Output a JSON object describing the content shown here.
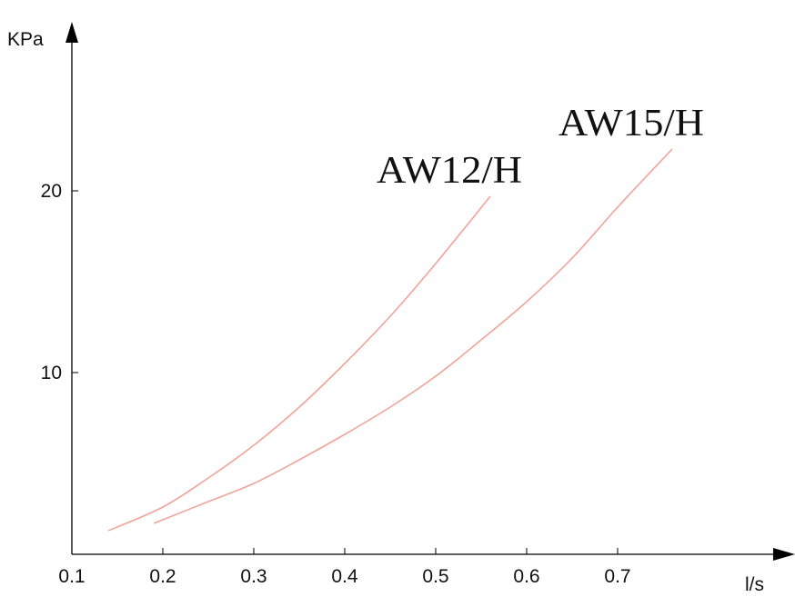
{
  "chart_data": {
    "type": "line",
    "title": "",
    "xlabel": "l/s",
    "ylabel": "KPa",
    "xlim": [
      0.1,
      0.8
    ],
    "ylim": [
      0,
      27
    ],
    "x_ticks": [
      0.1,
      0.2,
      0.3,
      0.4,
      0.5,
      0.6,
      0.7
    ],
    "x_tick_labels": [
      "0.1",
      "0.2",
      "0.3",
      "0.4",
      "0.5",
      "0.6",
      "0.7"
    ],
    "y_ticks": [
      10,
      20
    ],
    "y_tick_labels": [
      "10",
      "20"
    ],
    "grid": false,
    "legend": "none",
    "line_color": "#f0a49a",
    "axis_color": "#000000",
    "series": [
      {
        "name": "AW12/H",
        "x": [
          0.14,
          0.2,
          0.25,
          0.3,
          0.35,
          0.4,
          0.45,
          0.5,
          0.56
        ],
        "y": [
          1.3,
          2.6,
          4.2,
          6.0,
          8.1,
          10.5,
          13.1,
          16.0,
          19.7
        ]
      },
      {
        "name": "AW15/H",
        "x": [
          0.19,
          0.25,
          0.3,
          0.35,
          0.4,
          0.45,
          0.5,
          0.55,
          0.6,
          0.65,
          0.7,
          0.76
        ],
        "y": [
          1.7,
          2.9,
          3.9,
          5.2,
          6.6,
          8.1,
          9.8,
          11.8,
          13.9,
          16.3,
          19.1,
          22.3
        ]
      }
    ]
  }
}
